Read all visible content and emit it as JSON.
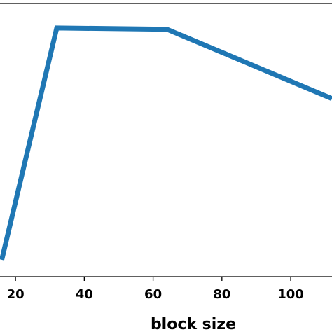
{
  "chart_data": {
    "type": "line",
    "xlabel": "block size",
    "ylabel": "",
    "title": "",
    "x_ticks": [
      20,
      40,
      60,
      80,
      100
    ],
    "x_tick_labels": [
      "20",
      "40",
      "60",
      "80",
      "100"
    ],
    "xlim": [
      15.5,
      112
    ],
    "ylim": [
      0,
      1
    ],
    "grid": false,
    "series": [
      {
        "color": "#1f77b4",
        "x": [
          16,
          32,
          64,
          112
        ],
        "y": [
          0.02,
          0.955,
          0.95,
          0.67
        ]
      }
    ]
  }
}
